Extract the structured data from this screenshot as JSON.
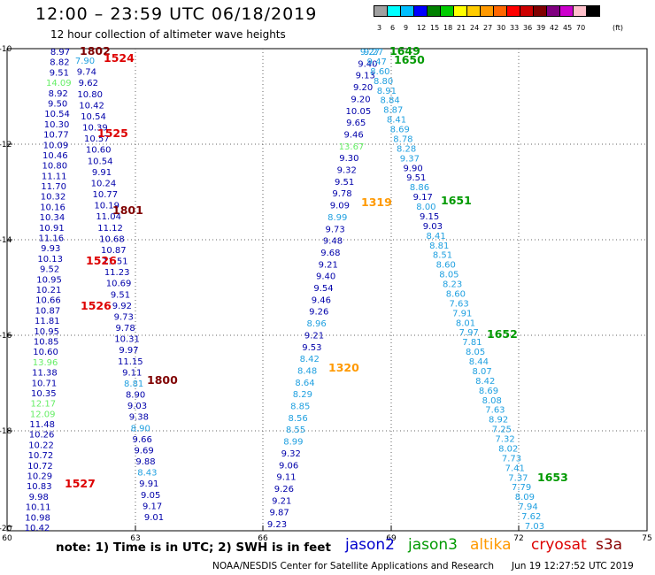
{
  "header": {
    "title": "12:00 – 23:59 UTC 06/18/2019",
    "subtitle": "12 hour collection of altimeter wave heights"
  },
  "legend": {
    "unit": "(ft)",
    "bins": [
      {
        "label": "3",
        "color": "#a0a0a0"
      },
      {
        "label": "6",
        "color": "#00ffff"
      },
      {
        "label": "9",
        "color": "#00bfff"
      },
      {
        "label": "12",
        "color": "#0000ff"
      },
      {
        "label": "15",
        "color": "#008000"
      },
      {
        "label": "18",
        "color": "#00cc00"
      },
      {
        "label": "21",
        "color": "#ffff00"
      },
      {
        "label": "24",
        "color": "#ffcc00"
      },
      {
        "label": "27",
        "color": "#ff9900"
      },
      {
        "label": "30",
        "color": "#ff6600"
      },
      {
        "label": "33",
        "color": "#ff0000"
      },
      {
        "label": "36",
        "color": "#cc0000"
      },
      {
        "label": "39",
        "color": "#800000"
      },
      {
        "label": "42",
        "color": "#800080"
      },
      {
        "label": "45",
        "color": "#cc00cc"
      },
      {
        "label": "70",
        "color": "#ffc0cb"
      },
      {
        "label": "",
        "color": "#000000"
      }
    ]
  },
  "axes": {
    "lat_labels": [
      "-10",
      "-12",
      "-14",
      "-16",
      "-18",
      "-20"
    ],
    "lon_labels": [
      "60",
      "63",
      "66",
      "69",
      "72",
      "75"
    ]
  },
  "footer": {
    "note": "note: 1) Time is in UTC; 2) SWH is in feet",
    "satellites": [
      {
        "name": "jason2",
        "color": "#0000cc"
      },
      {
        "name": "jason3",
        "color": "#009900"
      },
      {
        "name": "altika",
        "color": "#ff9900"
      },
      {
        "name": "cryosat",
        "color": "#dd0000"
      },
      {
        "name": "s3a",
        "color": "#880000"
      }
    ],
    "credit": "NOAA/NESDIS Center for Satellite Applications and Research",
    "timestamp": "Jun 19 12:27:52 UTC 2019"
  },
  "colors": {
    "dark_blue": "#0000aa",
    "light_blue": "#20a0e0",
    "light_green": "#66ee66"
  },
  "track_times": [
    {
      "text": "1802",
      "color": "#800000"
    },
    {
      "text": "1524",
      "color": "#dd0000"
    },
    {
      "text": "1525",
      "color": "#dd0000"
    },
    {
      "text": "1801",
      "color": "#800000"
    },
    {
      "text": "1526",
      "color": "#dd0000"
    },
    {
      "text": "1526",
      "color": "#dd0000"
    },
    {
      "text": "1800",
      "color": "#800000"
    },
    {
      "text": "1527",
      "color": "#dd0000"
    },
    {
      "text": "1649",
      "color": "#009900"
    },
    {
      "text": "1650",
      "color": "#009900"
    },
    {
      "text": "1319",
      "color": "#ff9900"
    },
    {
      "text": "1651",
      "color": "#009900"
    },
    {
      "text": "1320",
      "color": "#ff9900"
    },
    {
      "text": "1652",
      "color": "#009900"
    },
    {
      "text": "1653",
      "color": "#009900"
    }
  ],
  "tracks": {
    "left_cryosat": {
      "color": "#0000aa",
      "values": [
        "8.97",
        "8.82",
        "9.51",
        "14.09",
        "8.92",
        "9.50",
        "10.54",
        "10.30",
        "10.77",
        "10.09",
        "10.46",
        "10.80",
        "11.11",
        "11.70",
        "10.32",
        "10.16",
        "10.34",
        "10.91",
        "11.16",
        "9.93",
        "10.13",
        "9.52",
        "10.95",
        "10.21",
        "10.66",
        "10.87",
        "11.81",
        "10.95",
        "10.85",
        "10.60",
        "13.96",
        "11.38",
        "10.71",
        "10.35",
        "12.17",
        "12.09",
        "11.48",
        "10.26",
        "10.22",
        "10.72",
        "10.72",
        "10.29",
        "10.83",
        "9.98",
        "10.11",
        "10.98",
        "10.42"
      ],
      "special": {
        "3": "#66ee66",
        "30": "#66ee66",
        "34": "#66ee66",
        "35": "#66ee66"
      }
    },
    "left_s3a": {
      "color": "#0000aa",
      "values": [
        "7.90",
        "9.74",
        "9.62",
        "10.80",
        "10.42",
        "10.54",
        "10.39",
        "10.57",
        "10.60",
        "10.54",
        "9.91",
        "10.24",
        "10.77",
        "10.19",
        "11.04",
        "11.12",
        "10.68",
        "10.87",
        "11.51",
        "11.23",
        "10.69",
        "9.51",
        "9.92",
        "9.73",
        "9.78",
        "10.31",
        "9.97",
        "11.15",
        "9.11",
        "8.81",
        "8.90",
        "9.03",
        "9.38",
        "8.90",
        "9.66",
        "9.69",
        "9.88",
        "8.43",
        "9.91",
        "9.05",
        "9.17",
        "9.01"
      ],
      "special": {
        "0": "#20a0e0",
        "29": "#20a0e0",
        "33": "#20a0e0",
        "37": "#20a0e0"
      }
    },
    "mid_jason2": {
      "color": "#0000aa",
      "values": [
        "9.27",
        "9.40",
        "9.13",
        "9.20",
        "9.20",
        "10.05",
        "9.65",
        "9.46",
        "13.67",
        "9.30",
        "9.32",
        "9.51",
        "9.78",
        "9.09",
        "8.99",
        "9.73",
        "9.48",
        "9.68",
        "9.21",
        "9.40",
        "9.54",
        "9.46",
        "9.26",
        "8.96",
        "9.21",
        "9.53",
        "8.42",
        "8.48",
        "8.64",
        "8.29",
        "8.85",
        "8.56",
        "8.55",
        "8.99",
        "9.32",
        "9.06",
        "9.11",
        "9.26",
        "9.21",
        "9.87",
        "9.23"
      ],
      "special": {
        "0": "#20a0e0",
        "8": "#66ee66",
        "14": "#20a0e0",
        "23": "#20a0e0",
        "26": "#20a0e0",
        "27": "#20a0e0",
        "28": "#20a0e0",
        "29": "#20a0e0",
        "30": "#20a0e0",
        "31": "#20a0e0",
        "32": "#20a0e0",
        "33": "#20a0e0"
      }
    },
    "right_jason3": {
      "color": "#20a0e0",
      "values": [
        "9.27",
        "9.47",
        "8.60",
        "8.80",
        "8.91",
        "8.84",
        "8.87",
        "8.41",
        "8.69",
        "8.78",
        "8.28",
        "9.37",
        "9.90",
        "9.51",
        "8.86",
        "9.17",
        "8.00",
        "9.15",
        "9.03",
        "8.41",
        "8.81",
        "8.51",
        "8.60",
        "8.05",
        "8.23",
        "8.60",
        "7.63",
        "7.91",
        "8.01",
        "7.97",
        "7.81",
        "8.05",
        "8.44",
        "8.07",
        "8.42",
        "8.69",
        "8.08",
        "7.63",
        "8.92",
        "7.25",
        "7.32",
        "8.02",
        "7.73",
        "7.41",
        "7.37",
        "7.79",
        "8.09",
        "7.94",
        "7.62",
        "7.03"
      ],
      "special": {
        "12": "#0000aa",
        "13": "#0000aa",
        "15": "#0000aa",
        "17": "#0000aa",
        "18": "#0000aa"
      }
    }
  }
}
